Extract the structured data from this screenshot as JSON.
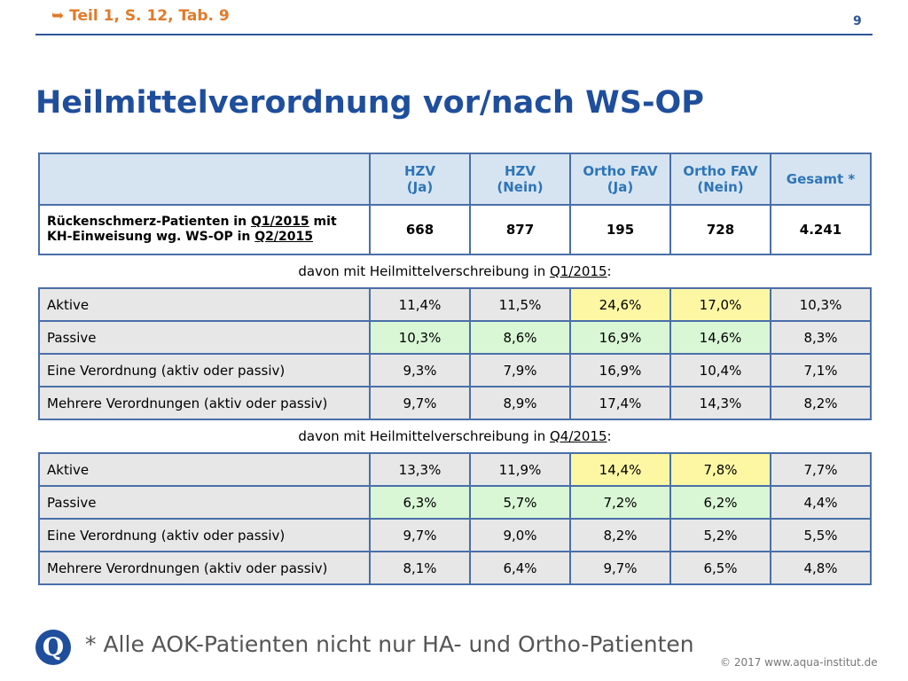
{
  "header": {
    "reference_arrow": "➥",
    "reference": "Teil 1, S. 12, Tab. 9",
    "page_number": "9"
  },
  "title": "Heilmittelverordnung vor/nach WS-OP",
  "table": {
    "columns": [
      {
        "line1": "HZV",
        "line2": "(Ja)"
      },
      {
        "line1": "HZV",
        "line2": "(Nein)"
      },
      {
        "line1": "Ortho FAV",
        "line2": "(Ja)"
      },
      {
        "line1": "Ortho FAV",
        "line2": "(Nein)"
      },
      {
        "line1": "Gesamt *",
        "line2": ""
      }
    ],
    "count_row": {
      "label_part1": "Rückenschmerz-Patienten in ",
      "label_q1": "Q1/2015",
      "label_part2": " mit",
      "label_part3": "KH-Einweisung wg. WS-OP in ",
      "label_q2": "Q2/2015",
      "values": [
        "668",
        "877",
        "195",
        "728",
        "4.241"
      ]
    },
    "section1": {
      "prefix": "davon mit Heilmittelverschreibung in ",
      "quarter": "Q1/2015",
      "suffix": ":"
    },
    "section1_rows": [
      {
        "label": "Aktive",
        "values": [
          "11,4%",
          "11,5%",
          "24,6%",
          "17,0%",
          "10,3%"
        ]
      },
      {
        "label": "Passive",
        "values": [
          "10,3%",
          "8,6%",
          "16,9%",
          "14,6%",
          "8,3%"
        ]
      },
      {
        "label": "Eine Verordnung (aktiv oder passiv)",
        "values": [
          "9,3%",
          "7,9%",
          "16,9%",
          "10,4%",
          "7,1%"
        ]
      },
      {
        "label": "Mehrere Verordnungen (aktiv oder passiv)",
        "values": [
          "9,7%",
          "8,9%",
          "17,4%",
          "14,3%",
          "8,2%"
        ]
      }
    ],
    "section2": {
      "prefix": "davon mit Heilmittelverschreibung in ",
      "quarter": "Q4/2015",
      "suffix": ":"
    },
    "section2_rows": [
      {
        "label": "Aktive",
        "values": [
          "13,3%",
          "11,9%",
          "14,4%",
          "7,8%",
          "7,7%"
        ]
      },
      {
        "label": "Passive",
        "values": [
          "6,3%",
          "5,7%",
          "7,2%",
          "6,2%",
          "4,4%"
        ]
      },
      {
        "label": "Eine Verordnung (aktiv oder passiv)",
        "values": [
          "9,7%",
          "9,0%",
          "8,2%",
          "5,2%",
          "5,5%"
        ]
      },
      {
        "label": "Mehrere Verordnungen (aktiv oder passiv)",
        "values": [
          "8,1%",
          "6,4%",
          "9,7%",
          "6,5%",
          "4,8%"
        ]
      }
    ],
    "highlight_colors": {
      "yellow": "#fdf7a4",
      "green": "#d9f7d5",
      "grey": "#e7e7e7",
      "header": "#d6e4f2"
    }
  },
  "footer": {
    "logo_letter": "Q",
    "footnote": "* Alle AOK-Patienten nicht nur HA- und Ortho-Patienten",
    "copyright": "© 2017 www.aqua-institut.de"
  }
}
